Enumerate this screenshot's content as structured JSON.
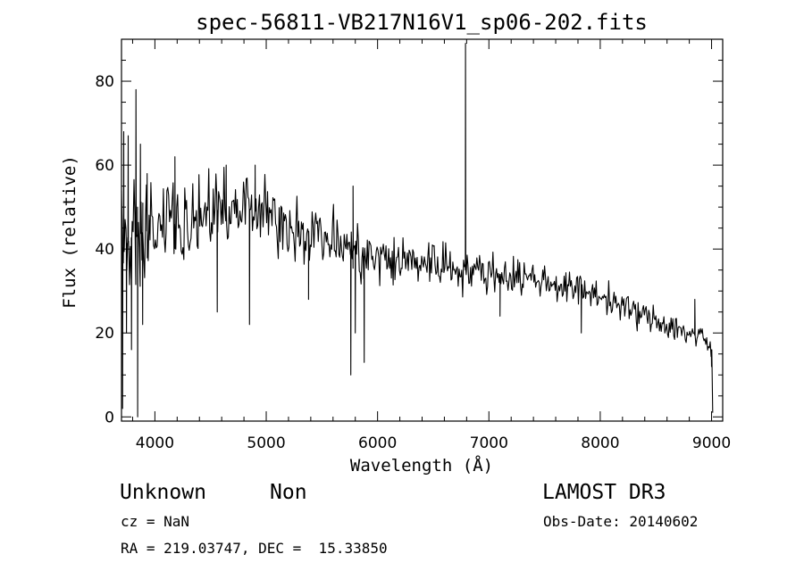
{
  "chart_data": {
    "type": "line",
    "title": "spec-56811-VB217N16V1_sp06-202.fits",
    "xlabel": "Wavelength (Å)",
    "ylabel": "Flux (relative)",
    "xlim": [
      3700,
      9100
    ],
    "ylim": [
      -1,
      90
    ],
    "x_ticks": [
      4000,
      5000,
      6000,
      7000,
      8000,
      9000
    ],
    "y_ticks": [
      0,
      20,
      40,
      60,
      80
    ],
    "x_minor_step": 200,
    "y_minor_step": 5,
    "grid": false,
    "legend": "none",
    "series": [
      {
        "line_color": "#000000",
        "trend": [
          [
            3700,
            40
          ],
          [
            3800,
            43
          ],
          [
            4000,
            45
          ],
          [
            4200,
            46
          ],
          [
            4500,
            49
          ],
          [
            4800,
            50
          ],
          [
            5000,
            48
          ],
          [
            5300,
            45
          ],
          [
            5600,
            42
          ],
          [
            5900,
            38
          ],
          [
            6200,
            37
          ],
          [
            6500,
            37
          ],
          [
            6800,
            35
          ],
          [
            7100,
            34
          ],
          [
            7400,
            33
          ],
          [
            7700,
            31
          ],
          [
            8000,
            29
          ],
          [
            8300,
            25
          ],
          [
            8600,
            22
          ],
          [
            8900,
            19
          ],
          [
            9000,
            16
          ]
        ],
        "noise_amplitude": [
          [
            3700,
            14
          ],
          [
            4000,
            9
          ],
          [
            5000,
            7
          ],
          [
            6000,
            6
          ],
          [
            7000,
            4
          ],
          [
            8000,
            3
          ],
          [
            9000,
            3
          ]
        ],
        "features": [
          {
            "x": 3710,
            "y": 2
          },
          {
            "x": 3720,
            "y": 68
          },
          {
            "x": 3745,
            "y": 20
          },
          {
            "x": 3760,
            "y": 67
          },
          {
            "x": 3790,
            "y": 16
          },
          {
            "x": 3830,
            "y": 78
          },
          {
            "x": 3845,
            "y": 0
          },
          {
            "x": 3870,
            "y": 65
          },
          {
            "x": 3890,
            "y": 22
          },
          {
            "x": 3930,
            "y": 58
          },
          {
            "x": 4180,
            "y": 62
          },
          {
            "x": 4560,
            "y": 25
          },
          {
            "x": 4640,
            "y": 60
          },
          {
            "x": 4850,
            "y": 22
          },
          {
            "x": 4900,
            "y": 60
          },
          {
            "x": 5380,
            "y": 28
          },
          {
            "x": 5760,
            "y": 10
          },
          {
            "x": 5780,
            "y": 55
          },
          {
            "x": 5800,
            "y": 20
          },
          {
            "x": 5880,
            "y": 13
          },
          {
            "x": 6790,
            "y": 89
          },
          {
            "x": 7100,
            "y": 24
          },
          {
            "x": 7830,
            "y": 20
          },
          {
            "x": 8850,
            "y": 28
          },
          {
            "x": 9000,
            "y": 12
          }
        ],
        "x_end": 9010,
        "y_end": 1
      }
    ]
  },
  "info": {
    "class_label": "Unknown",
    "subclass_label": "Non",
    "survey": "LAMOST DR3",
    "redshift": "cz = NaN",
    "obs_date": "Obs-Date: 20140602",
    "coords": "RA = 219.03747, DEC =  15.33850"
  }
}
